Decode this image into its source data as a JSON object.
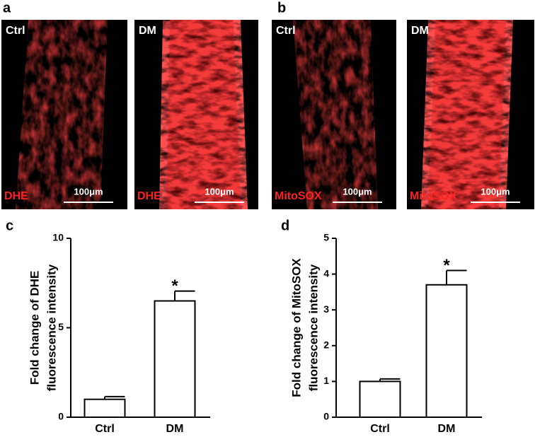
{
  "panels": [
    {
      "letter": "a",
      "images": [
        {
          "condition": "Ctrl",
          "stain": "DHE",
          "scale": "100μm"
        },
        {
          "condition": "DM",
          "stain": "DHE",
          "scale": "100μm"
        }
      ]
    },
    {
      "letter": "b",
      "images": [
        {
          "condition": "Ctrl",
          "stain": "MitoSOX",
          "scale": "100μm"
        },
        {
          "condition": "DM",
          "stain": "MitoSOX",
          "scale": "100μm"
        }
      ]
    }
  ],
  "chart_data": [
    {
      "type": "bar",
      "letter": "c",
      "ylabel": [
        "Fold change of DHE",
        "fluorescence intensity"
      ],
      "categories": [
        "Ctrl",
        "DM"
      ],
      "values": [
        1.0,
        6.5
      ],
      "errors": [
        0.15,
        0.55
      ],
      "annotation": "*",
      "color": "#ffffff",
      "edgecolor": "#000000",
      "ylim": [
        0,
        10
      ],
      "yticks": [
        0,
        5,
        10
      ]
    },
    {
      "type": "bar",
      "letter": "d",
      "ylabel": [
        "Fold change of MitoSOX",
        "fluorescence intensity"
      ],
      "categories": [
        "Ctrl",
        "DM"
      ],
      "values": [
        1.0,
        3.7
      ],
      "errors": [
        0.07,
        0.4
      ],
      "annotation": "*",
      "color": "#ffffff",
      "edgecolor": "#000000",
      "ylim": [
        0,
        5
      ],
      "yticks": [
        0,
        1,
        2,
        3,
        4,
        5
      ]
    }
  ]
}
